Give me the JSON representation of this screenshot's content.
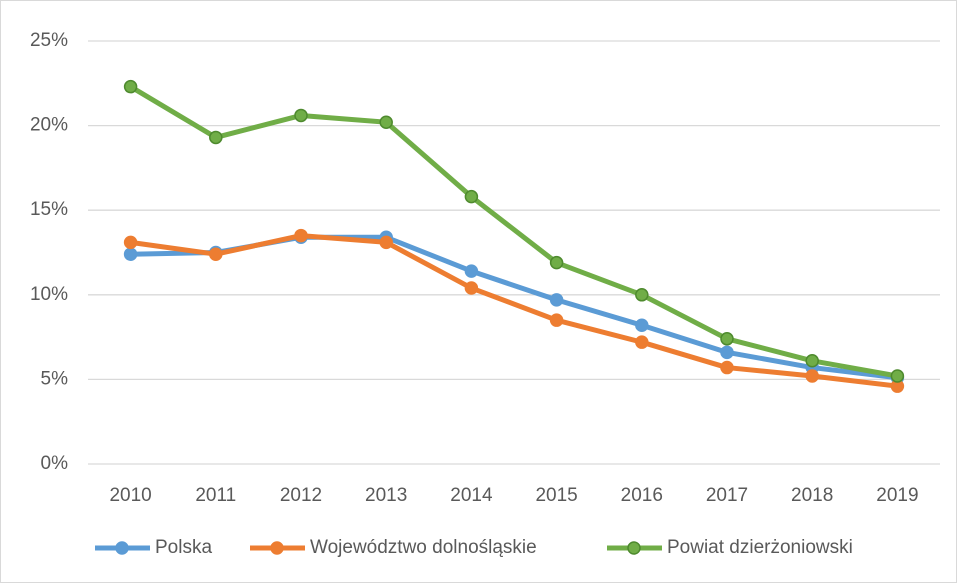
{
  "chart_data": {
    "type": "line",
    "categories": [
      "2010",
      "2011",
      "2012",
      "2013",
      "2014",
      "2015",
      "2016",
      "2017",
      "2018",
      "2019"
    ],
    "series": [
      {
        "name": "Polska",
        "color": "#5b9bd5",
        "values": [
          12.4,
          12.5,
          13.4,
          13.4,
          11.4,
          9.7,
          8.2,
          6.6,
          5.7,
          5.1
        ]
      },
      {
        "name": "Województwo dolnośląskie",
        "color": "#ed7d31",
        "values": [
          13.1,
          12.4,
          13.5,
          13.1,
          10.4,
          8.5,
          7.2,
          5.7,
          5.2,
          4.6
        ]
      },
      {
        "name": "Powiat dzierżoniowski",
        "color": "#70ad47",
        "values": [
          22.3,
          19.3,
          20.6,
          20.2,
          15.8,
          11.9,
          10.0,
          7.4,
          6.1,
          5.2
        ]
      }
    ],
    "ylim": [
      0,
      25
    ],
    "yticks": [
      {
        "value": 0,
        "label": "0%"
      },
      {
        "value": 5,
        "label": "5%"
      },
      {
        "value": 10,
        "label": "10%"
      },
      {
        "value": 15,
        "label": "15%"
      },
      {
        "value": 20,
        "label": "20%"
      },
      {
        "value": 25,
        "label": "25%"
      }
    ],
    "grid": true,
    "legend": "bottom"
  }
}
